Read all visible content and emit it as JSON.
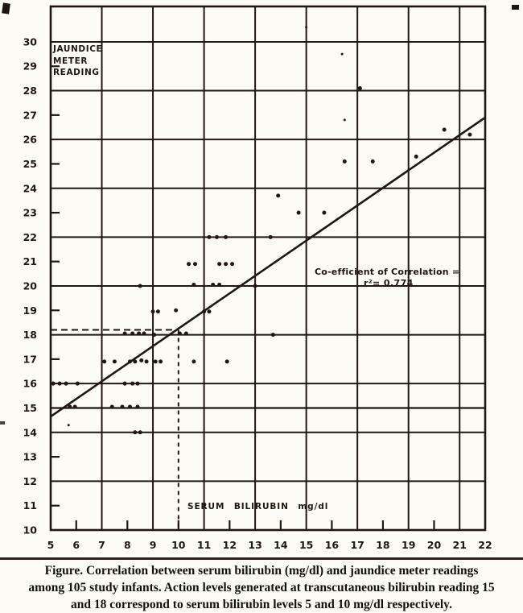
{
  "figure": {
    "y_axis_title_lines": [
      "JAUNDICE",
      "METER",
      "READING"
    ],
    "x_axis_title": "SERUM BILIRUBIN mg/dl",
    "annotation": {
      "line1": "Co-efficient of Correlation =",
      "line2": "r²= 0.774"
    },
    "caption_lines": [
      "Figure. Correlation between serum bilirubin (mg/dl) and jaundice meter readings",
      "among 105 study infants. Action levels generated at transcutaneous bilirubin reading 15",
      "and 18 correspond to serum bilirubin levels 5 and 10 mg/dl respectively."
    ]
  },
  "colors": {
    "ink": "#201710",
    "paper": "#fcfbf5",
    "caption_ink": "#14100b"
  },
  "chart_data": {
    "type": "scatter",
    "title": "",
    "xlabel": "SERUM BILIRUBIN mg/dl",
    "ylabel": "JAUNDICE METER READING",
    "xlim": [
      5,
      22
    ],
    "ylim": [
      10,
      31.45
    ],
    "grid": true,
    "x_gridlines": [
      7,
      9,
      11,
      13,
      15,
      17,
      19,
      21
    ],
    "y_gridlines": [
      12,
      14,
      16,
      18,
      20,
      22,
      24,
      26,
      28,
      30
    ],
    "x_minor_ticks": [
      6,
      8,
      10,
      12,
      14,
      16,
      18,
      20
    ],
    "y_minor_ticks": [
      11,
      13,
      17,
      19,
      21,
      23,
      25,
      27,
      29
    ],
    "x_tick_labels": [
      5,
      6,
      7,
      8,
      9,
      10,
      11,
      12,
      13,
      14,
      15,
      16,
      17,
      18,
      19,
      20,
      21,
      22
    ],
    "y_tick_labels": [
      10,
      11,
      12,
      13,
      14,
      15,
      16,
      17,
      18,
      19,
      20,
      21,
      22,
      23,
      24,
      25,
      26,
      27,
      28,
      29,
      30
    ],
    "action_level_solid_y": 15,
    "action_level_dashed": {
      "y": 18.2,
      "x": 10
    },
    "regression_line": {
      "x1": 5,
      "y1": 14.65,
      "x2": 22,
      "y2": 26.9
    },
    "correlation_label": "Co-efficient of Correlation = r²= 0.774",
    "r_squared": 0.774,
    "n_infants": 105,
    "points": [
      [
        17.1,
        28.1
      ],
      [
        20.4,
        26.4
      ],
      [
        21.4,
        26.2
      ],
      [
        16.5,
        25.1
      ],
      [
        17.6,
        25.1
      ],
      [
        19.3,
        25.3
      ],
      [
        13.9,
        23.7
      ],
      [
        14.7,
        23.0
      ],
      [
        15.7,
        23.0
      ],
      [
        11.2,
        22.0
      ],
      [
        11.5,
        22.0
      ],
      [
        11.85,
        22.0
      ],
      [
        13.6,
        22.0
      ],
      [
        10.4,
        20.9
      ],
      [
        10.65,
        20.9
      ],
      [
        11.6,
        20.9
      ],
      [
        11.85,
        20.9
      ],
      [
        12.1,
        20.9
      ],
      [
        8.5,
        20.0
      ],
      [
        10.6,
        20.05
      ],
      [
        11.35,
        20.05
      ],
      [
        11.6,
        20.05
      ],
      [
        13.0,
        20.0
      ],
      [
        9.0,
        18.95
      ],
      [
        9.2,
        18.95
      ],
      [
        9.9,
        19.0
      ],
      [
        11.0,
        18.95
      ],
      [
        11.2,
        18.95
      ],
      [
        7.9,
        18.05
      ],
      [
        8.2,
        18.05
      ],
      [
        8.45,
        18.05
      ],
      [
        8.65,
        18.05
      ],
      [
        9.05,
        18.0
      ],
      [
        10.05,
        18.05
      ],
      [
        10.3,
        18.05
      ],
      [
        13.7,
        18.0
      ],
      [
        7.1,
        16.9
      ],
      [
        7.5,
        16.9
      ],
      [
        8.1,
        16.9
      ],
      [
        8.3,
        16.9
      ],
      [
        8.55,
        16.95
      ],
      [
        8.75,
        16.9
      ],
      [
        9.1,
        16.9
      ],
      [
        9.3,
        16.9
      ],
      [
        10.6,
        16.9
      ],
      [
        11.9,
        16.9
      ],
      [
        5.1,
        16.0
      ],
      [
        5.35,
        16.0
      ],
      [
        5.6,
        16.0
      ],
      [
        6.05,
        16.0
      ],
      [
        7.9,
        16.0
      ],
      [
        8.2,
        16.0
      ],
      [
        8.4,
        16.0
      ],
      [
        5.75,
        15.05
      ],
      [
        5.95,
        15.05
      ],
      [
        7.4,
        15.05
      ],
      [
        7.8,
        15.05
      ],
      [
        8.1,
        15.05
      ],
      [
        8.4,
        15.05
      ],
      [
        8.3,
        14.0
      ],
      [
        8.5,
        14.0
      ]
    ],
    "small_points": [
      [
        15.0,
        30.6
      ],
      [
        16.4,
        29.5
      ],
      [
        16.5,
        26.8
      ],
      [
        5.7,
        14.3
      ]
    ]
  }
}
